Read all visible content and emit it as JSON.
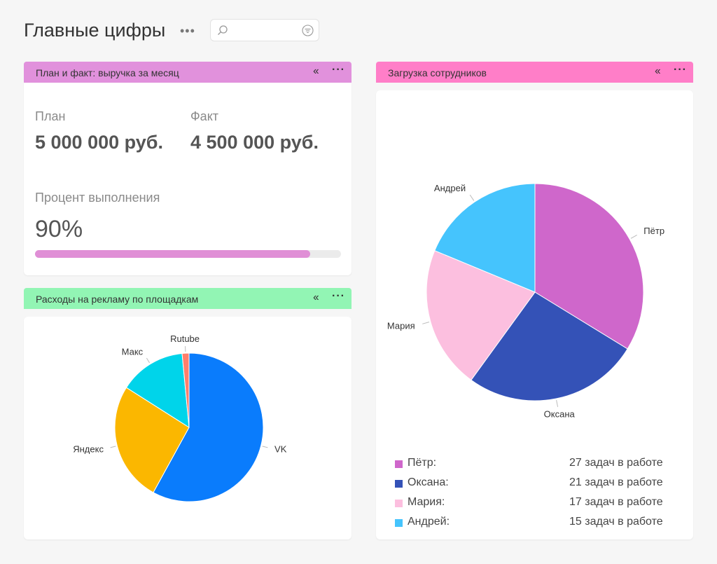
{
  "page": {
    "title": "Главные цифры",
    "more_icon": "ellipsis-icon"
  },
  "search": {
    "value": "",
    "placeholder": "",
    "icon": "search-icon",
    "filter_icon": "filter-icon"
  },
  "plan_widget": {
    "title": "План и факт: выручка за месяц",
    "header_color": "#e191dc",
    "plan_label": "План",
    "plan_value": "5 000 000 руб.",
    "fact_label": "Факт",
    "fact_value": "4 500 000 руб.",
    "percent_label": "Процент выполнения",
    "percent_value": "90%",
    "progress_fraction": 0.9,
    "progress_color": "#e08fd6"
  },
  "ads_widget": {
    "title": "Расходы на рекламу по площадкам",
    "header_color": "#92f5b4"
  },
  "staff_widget": {
    "title": "Загрузка сотрудников",
    "header_color": "#ff7ec8"
  },
  "chart_data": [
    {
      "type": "pie",
      "categories": [
        "VK",
        "Яндекс",
        "Макс",
        "Rutube"
      ],
      "values": [
        58,
        26,
        14.5,
        1.5
      ],
      "colors": [
        "#0a7cfc",
        "#fbb700",
        "#00d4ea",
        "#ff7e6b"
      ]
    },
    {
      "type": "pie",
      "categories": [
        "Пётр",
        "Оксана",
        "Мария",
        "Андрей"
      ],
      "values": [
        27,
        21,
        17,
        15
      ],
      "colors": [
        "#cf67cb",
        "#3452b7",
        "#fcbfdf",
        "#45c4fd"
      ],
      "legend": [
        "27 задач в работе",
        "21 задач в работе",
        "17 задач в работе",
        "15 задач в работе"
      ],
      "legend_suffix": ":"
    }
  ]
}
